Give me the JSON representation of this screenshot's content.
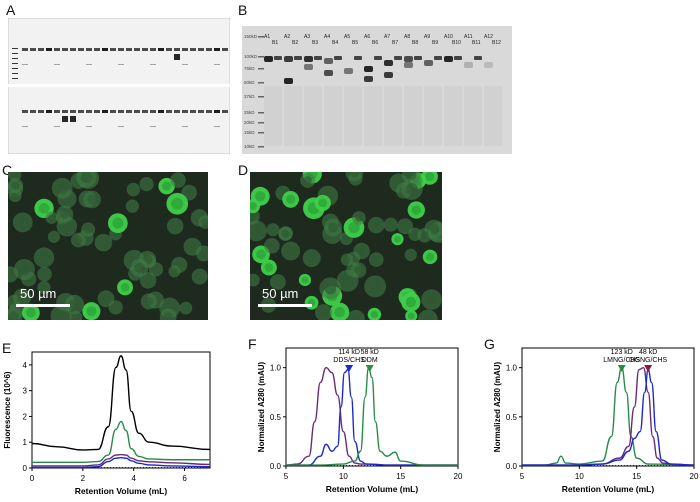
{
  "figure": {
    "panels": {
      "A": "A",
      "B": "B",
      "C": "C",
      "D": "D",
      "E": "E",
      "F": "F",
      "G": "G"
    },
    "gel_b_lane_labels_top": [
      "A1",
      "A2",
      "A3",
      "A4",
      "A5",
      "A6",
      "A7",
      "A8",
      "A9",
      "A10",
      "A11",
      "A12"
    ],
    "gel_b_lane_labels_bottom": [
      "B1",
      "B2",
      "B3",
      "B4",
      "B5",
      "B6",
      "B7",
      "B8",
      "B9",
      "B10",
      "B11",
      "B12"
    ],
    "gel_b_markers": [
      "150kD",
      "100kD",
      "75kD",
      "50kD",
      "37kD",
      "25kD",
      "20kD",
      "15kD",
      "10kD"
    ],
    "scale_c": "50 µm",
    "scale_d": "50 µm"
  },
  "chart_data": [
    {
      "panel": "E",
      "type": "line",
      "xlabel": "Retention Volume (mL)",
      "ylabel": "Fluorescence (10^6)",
      "xlim": [
        0,
        7
      ],
      "ylim": [
        0,
        4.5
      ],
      "xticks": [
        0,
        2,
        4,
        6
      ],
      "yticks": [
        0,
        1,
        2,
        3,
        4
      ],
      "series": [
        {
          "color": "#000000",
          "x": [
            0,
            1,
            2,
            2.6,
            3.0,
            3.3,
            3.5,
            3.7,
            3.9,
            4.2,
            4.6,
            5.5,
            7
          ],
          "y": [
            0.95,
            0.82,
            0.7,
            0.72,
            1.6,
            3.9,
            4.35,
            3.8,
            2.2,
            1.35,
            1.0,
            0.85,
            0.72
          ]
        },
        {
          "color": "#2a8a4a",
          "x": [
            0,
            1,
            2,
            2.6,
            3.0,
            3.3,
            3.5,
            3.7,
            3.9,
            4.2,
            4.6,
            5.5,
            7
          ],
          "y": [
            0.22,
            0.22,
            0.22,
            0.25,
            0.5,
            1.5,
            1.8,
            1.45,
            0.75,
            0.45,
            0.35,
            0.32,
            0.32
          ]
        },
        {
          "color": "#6a2a7a",
          "x": [
            0,
            1,
            2,
            2.6,
            3.0,
            3.3,
            3.5,
            3.7,
            3.9,
            4.2,
            4.6,
            5.5,
            7
          ],
          "y": [
            0.08,
            0.08,
            0.08,
            0.12,
            0.35,
            0.5,
            0.52,
            0.5,
            0.38,
            0.28,
            0.24,
            0.2,
            0.14
          ]
        },
        {
          "color": "#1a2acc",
          "x": [
            0,
            1,
            2,
            2.6,
            3.0,
            3.3,
            3.5,
            3.7,
            3.9,
            4.2,
            4.6,
            5.5,
            7
          ],
          "y": [
            0.02,
            0.02,
            0.02,
            0.05,
            0.25,
            0.38,
            0.4,
            0.38,
            0.28,
            0.18,
            0.12,
            0.08,
            0.05
          ]
        }
      ]
    },
    {
      "panel": "F",
      "type": "line",
      "xlabel": "Retention Volume (mL)",
      "ylabel": "Normalized A280 (mAU)",
      "xlim": [
        5,
        20
      ],
      "ylim": [
        0,
        1.2
      ],
      "xticks": [
        5,
        10,
        15,
        20
      ],
      "yticks": [
        0.0,
        0.5,
        1.0
      ],
      "annotations": [
        {
          "text": "114 kD",
          "text2": "DDS/CHS",
          "x": 10.5,
          "color": "#1a2acc"
        },
        {
          "text": "58 kD",
          "text2": "DDM",
          "x": 12.3,
          "color": "#2a8a4a"
        }
      ],
      "series": [
        {
          "color": "#6a2a7a",
          "x": [
            5,
            6,
            7,
            7.5,
            8,
            8.5,
            9,
            9.5,
            10,
            10.5,
            11,
            11.5,
            12,
            14,
            20
          ],
          "y": [
            0.01,
            0.02,
            0.1,
            0.45,
            0.85,
            1.0,
            0.95,
            0.72,
            0.35,
            0.1,
            0.03,
            0.02,
            0.02,
            0.01,
            0.01
          ]
        },
        {
          "color": "#1a2acc",
          "x": [
            5,
            7,
            8,
            8.5,
            9,
            9.5,
            9.8,
            10.1,
            10.4,
            10.7,
            11,
            11.5,
            12,
            14,
            20
          ],
          "y": [
            0.01,
            0.01,
            0.1,
            0.22,
            0.15,
            0.2,
            0.6,
            0.95,
            0.98,
            0.7,
            0.25,
            0.05,
            0.02,
            0.01,
            0.01
          ]
        },
        {
          "color": "#2a8a4a",
          "x": [
            5,
            8,
            10,
            11,
            11.5,
            11.9,
            12.2,
            12.5,
            12.8,
            13.2,
            13.8,
            14.5,
            15,
            17,
            20
          ],
          "y": [
            0.01,
            0.01,
            0.02,
            0.05,
            0.15,
            0.7,
            1.0,
            0.9,
            0.45,
            0.15,
            0.1,
            0.14,
            0.05,
            0.01,
            0.01
          ]
        }
      ]
    },
    {
      "panel": "G",
      "type": "line",
      "xlabel": "Retention Volume (mL)",
      "ylabel": "Normalized A280 (mAU)",
      "xlim": [
        5,
        20
      ],
      "ylim": [
        0,
        1.2
      ],
      "xticks": [
        5,
        10,
        15,
        20
      ],
      "yticks": [
        0.0,
        0.5,
        1.0
      ],
      "annotations": [
        {
          "text": "123 kD",
          "text2": "LMNG/CHS",
          "x": 13.7,
          "color": "#2a8a4a"
        },
        {
          "text": "48 kD",
          "text2": "OGNG/CHS",
          "x": 16.0,
          "color": "#8a1a3a"
        }
      ],
      "series": [
        {
          "color": "#2a8a4a",
          "x": [
            5,
            7,
            8,
            8.4,
            8.8,
            10,
            12,
            12.8,
            13.3,
            13.7,
            14.1,
            14.5,
            15,
            16,
            20
          ],
          "y": [
            0.01,
            0.01,
            0.03,
            0.1,
            0.03,
            0.02,
            0.05,
            0.3,
            0.85,
            1.0,
            0.75,
            0.3,
            0.08,
            0.02,
            0.01
          ]
        },
        {
          "color": "#6a2a7a",
          "x": [
            5,
            10,
            12,
            13.5,
            14.3,
            14.8,
            15.2,
            15.6,
            16.0,
            16.4,
            16.8,
            17.3,
            18,
            20
          ],
          "y": [
            0.01,
            0.01,
            0.02,
            0.08,
            0.2,
            0.6,
            0.98,
            1.0,
            0.75,
            0.3,
            0.08,
            0.03,
            0.02,
            0.01
          ]
        },
        {
          "color": "#1a2acc",
          "x": [
            5,
            10,
            12,
            13.5,
            14.3,
            14.8,
            15.3,
            15.7,
            16.0,
            16.3,
            16.7,
            17.2,
            18,
            20
          ],
          "y": [
            0.01,
            0.01,
            0.02,
            0.06,
            0.15,
            0.28,
            0.35,
            0.75,
            0.98,
            0.85,
            0.35,
            0.06,
            0.02,
            0.01
          ]
        }
      ]
    }
  ]
}
